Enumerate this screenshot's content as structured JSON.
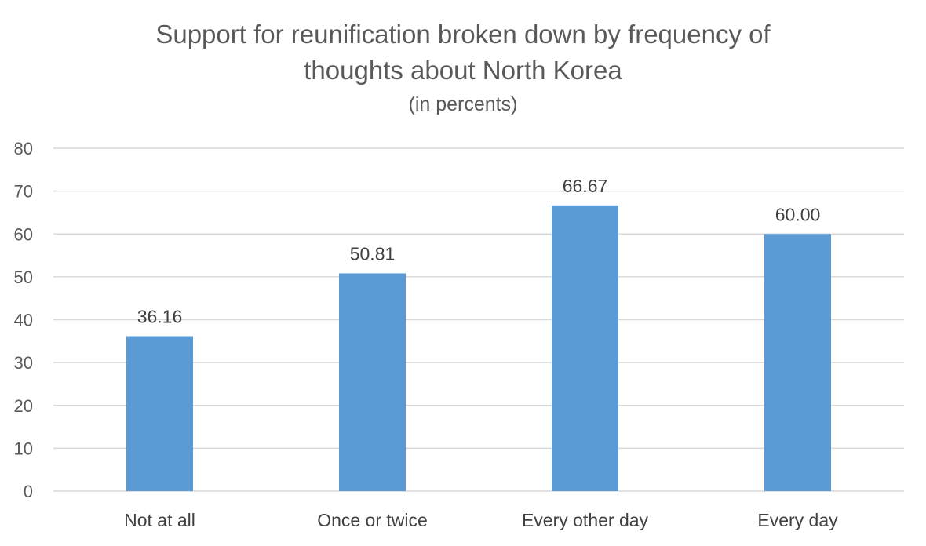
{
  "chart_data": {
    "type": "bar",
    "title": "Support for reunification broken down by frequency of thoughts about North Korea",
    "title_lines": [
      "Support for reunification broken down by frequency of",
      "thoughts about North Korea"
    ],
    "subtitle": "(in percents)",
    "categories": [
      "Not at all",
      "Once or twice",
      "Every other day",
      "Every day"
    ],
    "values": [
      36.16,
      50.81,
      66.67,
      60.0
    ],
    "data_labels": [
      "36.16",
      "50.81",
      "66.67",
      "60.00"
    ],
    "ylim": [
      0,
      80
    ],
    "yticks": [
      0,
      10,
      20,
      30,
      40,
      50,
      60,
      70,
      80
    ],
    "grid": true,
    "bar_color": "#5b9bd5",
    "grid_color": "#d9d9d9"
  }
}
